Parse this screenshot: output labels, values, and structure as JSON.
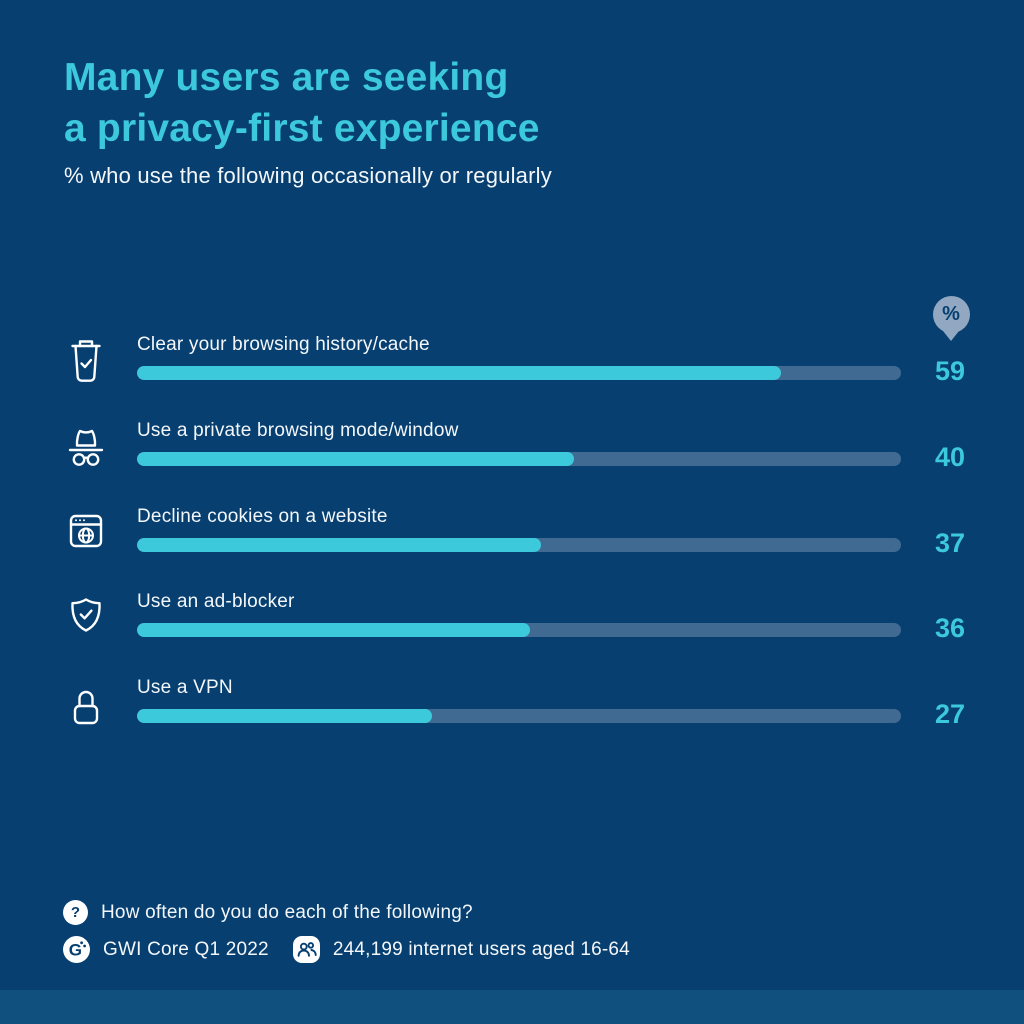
{
  "header": {
    "title_line1": "Many users are seeking",
    "title_line2": "a privacy-first experience",
    "subtitle": "% who use the following occasionally or regularly"
  },
  "unit_pin": {
    "label": "%"
  },
  "chart_data": {
    "type": "bar",
    "orientation": "horizontal",
    "title": "Many users are seeking a privacy-first experience",
    "subtitle": "% who use the following occasionally or regularly",
    "unit": "%",
    "categories": [
      "Clear your browsing history/cache",
      "Use a private browsing mode/window",
      "Decline cookies on a website",
      "Use an ad-blocker",
      "Use a VPN"
    ],
    "values": [
      59,
      40,
      37,
      36,
      27
    ],
    "icons": [
      "trash-check-icon",
      "incognito-icon",
      "browser-globe-icon",
      "shield-check-icon",
      "lock-icon"
    ],
    "xlim": [
      0,
      70
    ],
    "grid": false,
    "value_labels_position": "right",
    "bar_color": "#3DC9DC",
    "track_color": "#416A92"
  },
  "footer": {
    "question_icon": "?",
    "question_label": "How often do you do each of the following?",
    "logo_letter": "G",
    "source_label": "GWI Core Q1 2022",
    "audience_label": "244,199 internet users aged 16-64"
  },
  "colors": {
    "background": "#063F70",
    "accent_teal": "#3DC9DC",
    "bar_track": "#416A92",
    "pin_badge": "#92A8C2",
    "footer_band": "#10507F",
    "text_white": "#FFFFFF"
  }
}
